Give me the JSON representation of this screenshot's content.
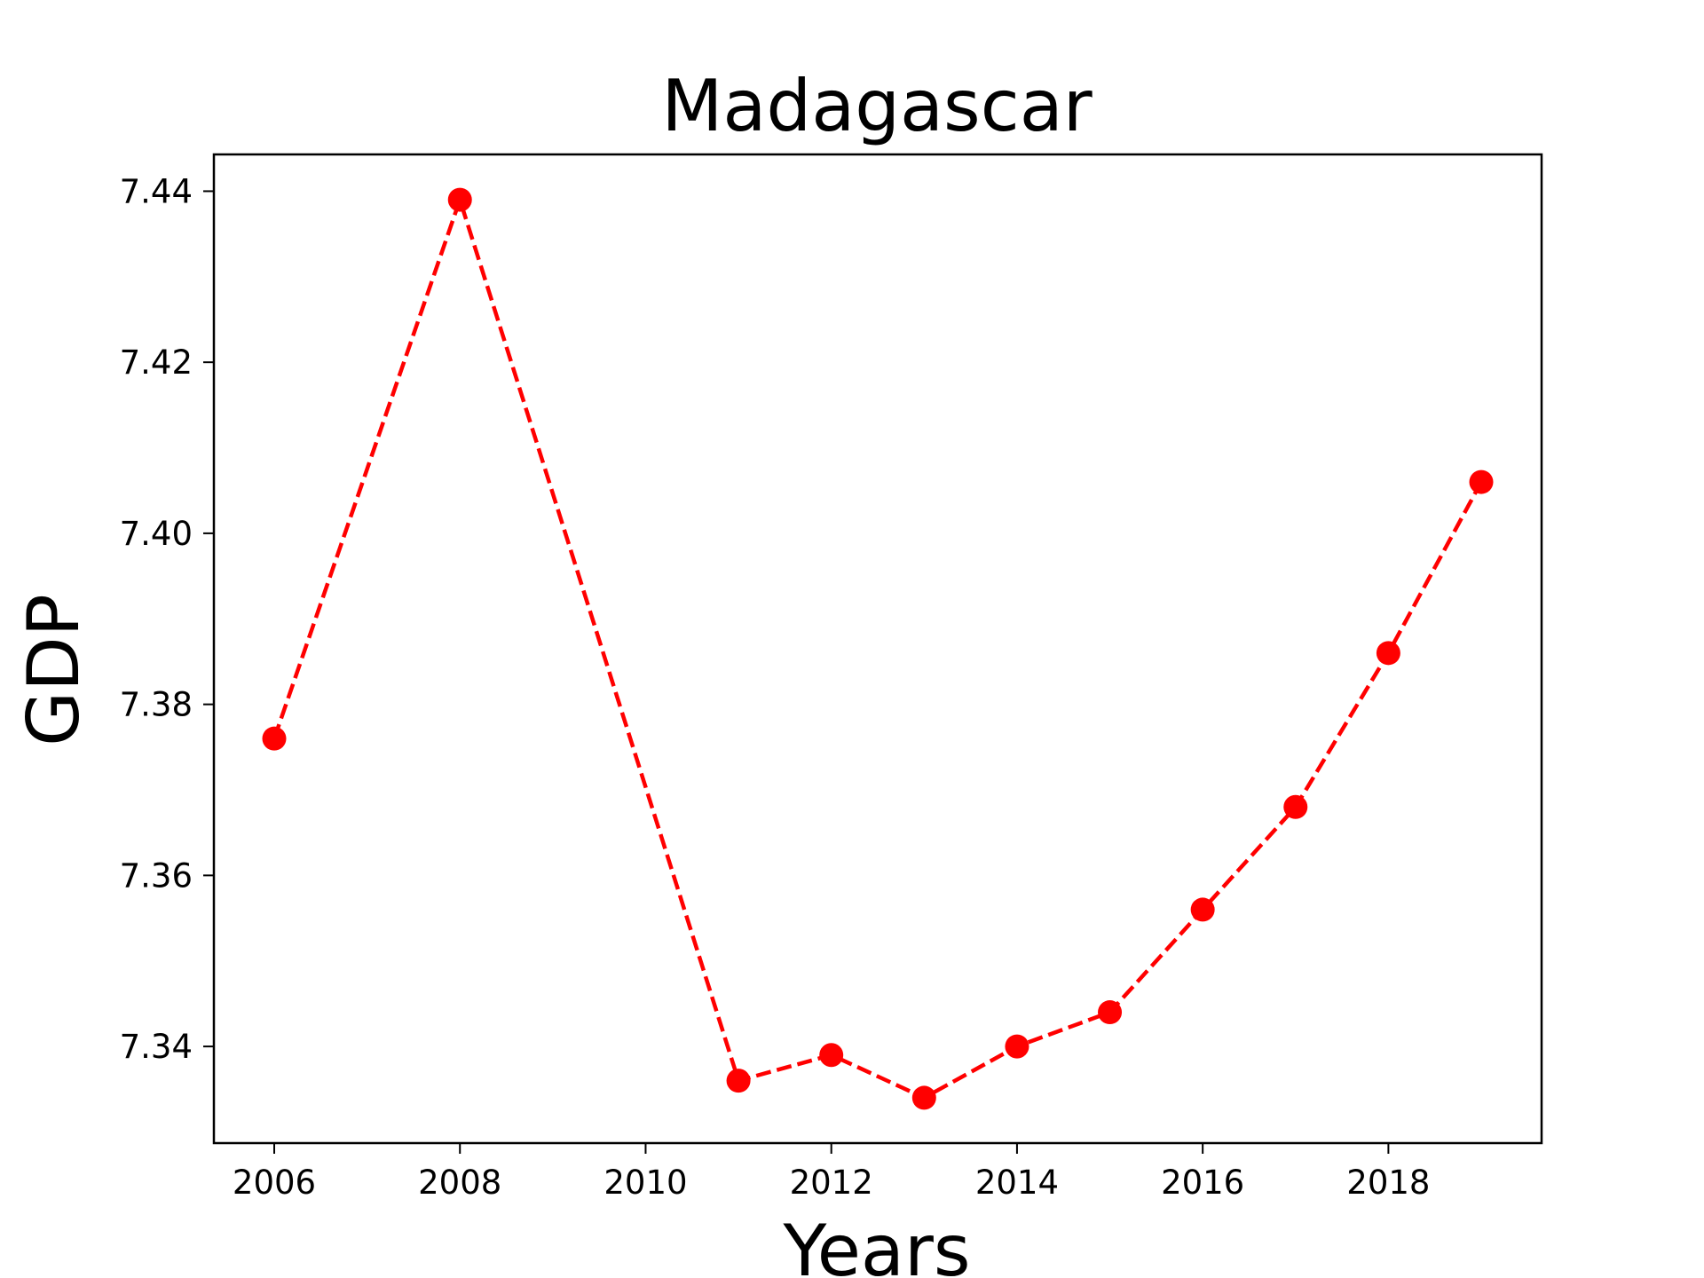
{
  "chart_data": {
    "type": "line",
    "title": "Madagascar",
    "xlabel": "Years",
    "ylabel": "GDP",
    "x": [
      2006,
      2008,
      2011,
      2012,
      2013,
      2014,
      2015,
      2016,
      2017,
      2018,
      2019
    ],
    "series": [
      {
        "values": [
          7.376,
          7.439,
          7.336,
          7.339,
          7.334,
          7.34,
          7.344,
          7.356,
          7.368,
          7.386,
          7.406
        ],
        "color": "#ff0000",
        "line_style": "dashed",
        "marker": "circle"
      }
    ],
    "xlim": [
      2005.35,
      2019.65
    ],
    "ylim": [
      7.3287,
      7.4443
    ],
    "xticks": [
      2006,
      2008,
      2010,
      2012,
      2014,
      2016,
      2018
    ],
    "yticks": [
      7.34,
      7.36,
      7.38,
      7.4,
      7.42,
      7.44
    ],
    "ytick_labels": [
      "7.34",
      "7.36",
      "7.38",
      "7.40",
      "7.42",
      "7.44"
    ],
    "grid": false,
    "legend": false
  }
}
